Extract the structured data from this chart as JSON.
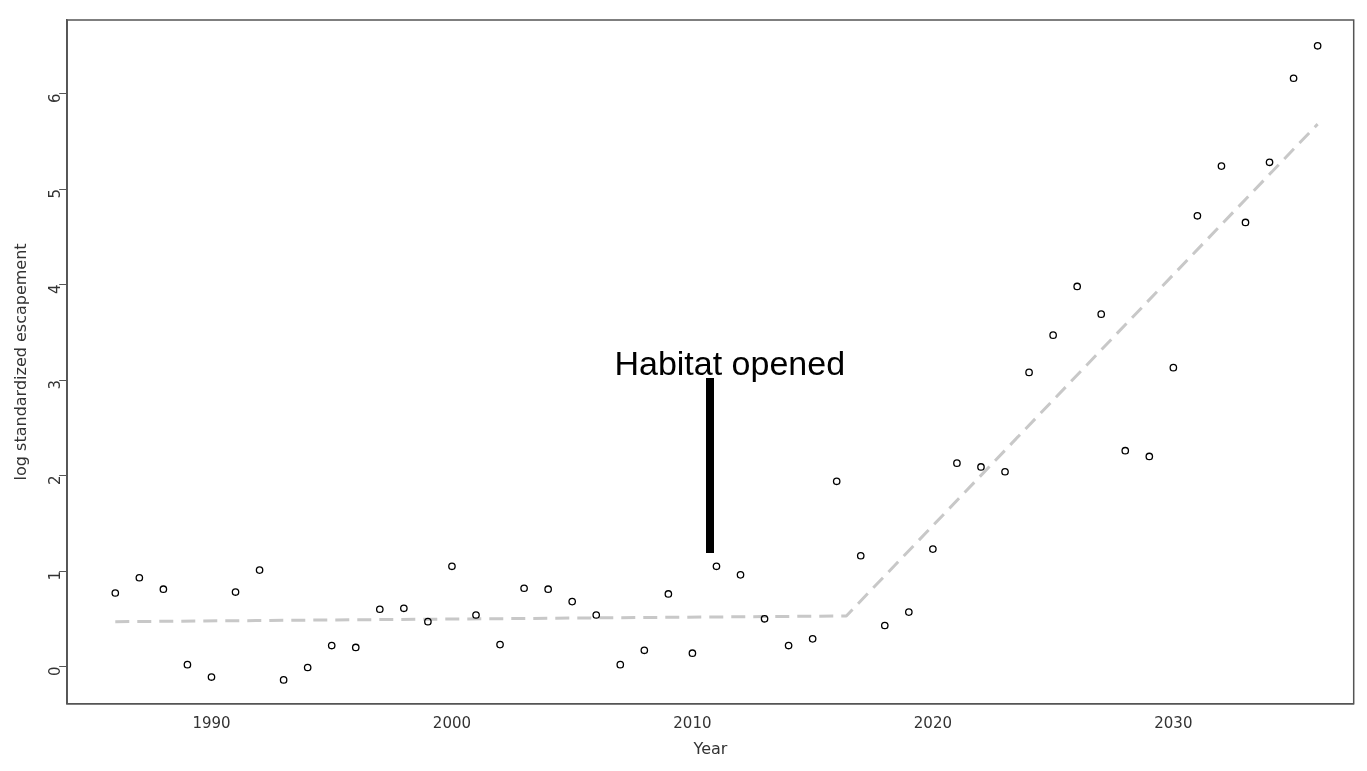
{
  "chart_data": {
    "type": "scatter",
    "xlabel": "Year",
    "ylabel": "log standardized escapement",
    "x": [
      1986,
      1987,
      1988,
      1989,
      1990,
      1991,
      1992,
      1993,
      1994,
      1995,
      1996,
      1997,
      1998,
      1999,
      2000,
      2001,
      2002,
      2003,
      2004,
      2005,
      2006,
      2007,
      2008,
      2009,
      2010,
      2011,
      2012,
      2013,
      2014,
      2015,
      2016,
      2017,
      2018,
      2019,
      2020,
      2021,
      2022,
      2023,
      2024,
      2025,
      2026,
      2027,
      2028,
      2029,
      2030,
      2031,
      2032,
      2033,
      2034,
      2035,
      2036
    ],
    "series": [
      {
        "color": "#000000",
        "marker": "circle",
        "values": [
          0.77,
          0.93,
          0.81,
          0.02,
          -0.11,
          0.78,
          1.01,
          -0.14,
          -0.01,
          0.22,
          0.2,
          0.6,
          0.61,
          0.47,
          1.05,
          0.54,
          0.23,
          0.82,
          0.81,
          0.68,
          0.54,
          0.02,
          0.17,
          0.76,
          0.14,
          1.05,
          0.96,
          0.5,
          0.22,
          0.29,
          1.94,
          1.16,
          0.43,
          0.57,
          1.23,
          2.13,
          2.09,
          2.04,
          3.08,
          3.47,
          3.98,
          3.69,
          2.26,
          2.2,
          3.13,
          4.72,
          5.24,
          4.65,
          5.28,
          6.16,
          6.5
        ]
      },
      {
        "type": "line",
        "color": "#c8c8c8",
        "marker": "none",
        "line_style": "dashed",
        "x": [
          1986,
          2016.4,
          2036
        ],
        "values": [
          0.47,
          0.53,
          5.68
        ]
      }
    ],
    "annotations": [
      "Habitat opened"
    ],
    "xlim": [
      1984,
      2037.5
    ],
    "xticks": [
      1990,
      2000,
      2010,
      2020,
      2030
    ],
    "ylim": [
      -0.39,
      6.77
    ],
    "yticks": [
      0,
      1,
      2,
      3,
      4,
      5,
      6
    ],
    "grid": false,
    "legend": false
  }
}
